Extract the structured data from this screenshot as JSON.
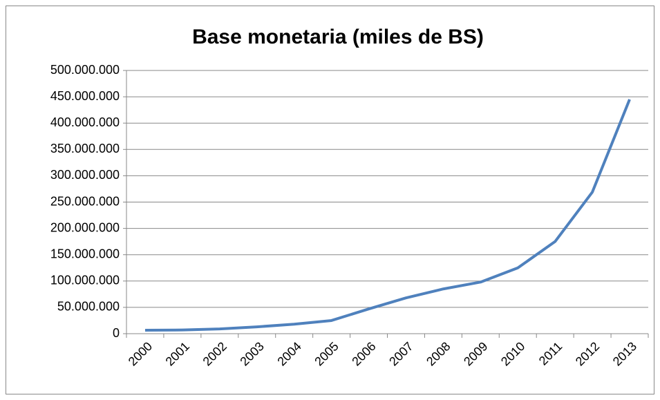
{
  "chart_data": {
    "type": "line",
    "title": "Base monetaria (miles de BS)",
    "categories": [
      "2000",
      "2001",
      "2002",
      "2003",
      "2004",
      "2005",
      "2006",
      "2007",
      "2008",
      "2009",
      "2010",
      "2011",
      "2012",
      "2013"
    ],
    "series": [
      {
        "name": "Base monetaria",
        "color": "#4f81bd",
        "values": [
          6500000,
          7000000,
          9000000,
          13000000,
          18000000,
          25000000,
          47000000,
          68000000,
          85000000,
          98000000,
          125000000,
          175000000,
          269000000,
          445000000
        ]
      }
    ],
    "ylim": [
      0,
      500000000
    ],
    "yticks": [
      0,
      {
        "value": 50000000,
        "label": "50.000.000"
      },
      {
        "value": 100000000,
        "label": "100.000.000"
      },
      {
        "value": 150000000,
        "label": "150.000.000"
      },
      {
        "value": 200000000,
        "label": "200.000.000"
      },
      {
        "value": 250000000,
        "label": "250.000.000"
      },
      {
        "value": 300000000,
        "label": "300.000.000"
      },
      {
        "value": 350000000,
        "label": "350.000.000"
      },
      {
        "value": 400000000,
        "label": "400.000.000"
      },
      {
        "value": 450000000,
        "label": "450.000.000"
      },
      {
        "value": 500000000,
        "label": "500.000.000"
      }
    ],
    "grid": true
  }
}
